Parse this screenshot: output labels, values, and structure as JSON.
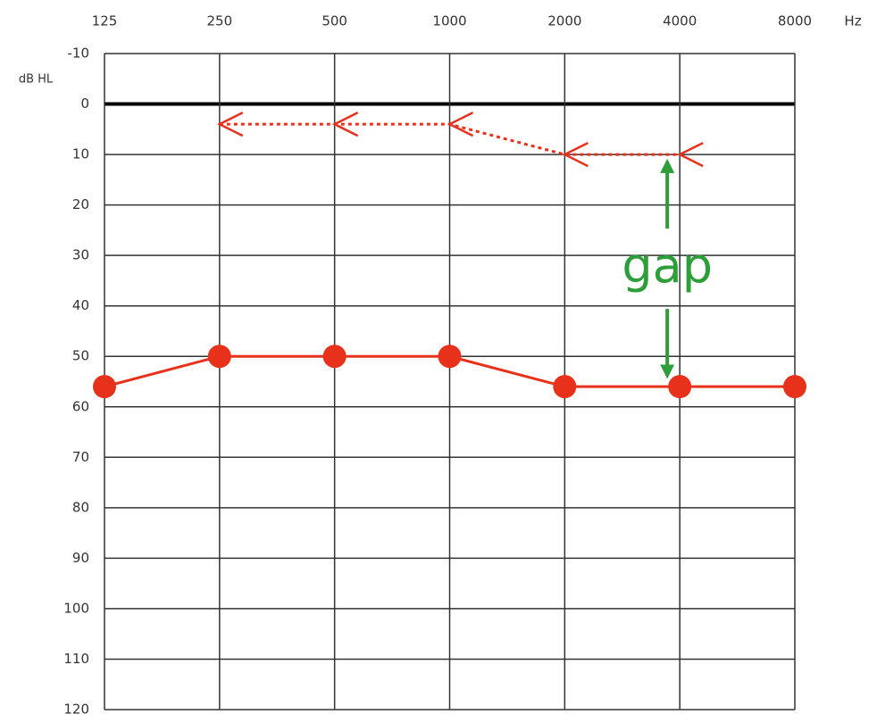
{
  "chart_data": {
    "type": "line",
    "x_label": "Hz",
    "y_label": "dB HL",
    "x": [
      125,
      250,
      500,
      1000,
      2000,
      4000,
      8000
    ],
    "xlim": [
      125,
      8000
    ],
    "xticks": [
      125,
      250,
      500,
      1000,
      2000,
      4000,
      8000
    ],
    "xscale": "log",
    "ylim": [
      -10,
      120
    ],
    "yticks": [
      -10,
      0,
      10,
      20,
      30,
      40,
      50,
      60,
      70,
      80,
      90,
      100,
      110,
      120
    ],
    "y_inverted": true,
    "grid": true,
    "series": [
      {
        "color": "#e8311a",
        "marker": "circle",
        "linestyle": "solid",
        "values": [
          56,
          50,
          50,
          50,
          56,
          56,
          56
        ]
      },
      {
        "color": "#e8311a",
        "marker": "<",
        "linestyle": "dotted",
        "values": [
          null,
          4,
          4,
          4,
          10,
          10,
          null
        ]
      }
    ],
    "annotation": {
      "text": "gap",
      "color": "#2e9e3a"
    }
  }
}
